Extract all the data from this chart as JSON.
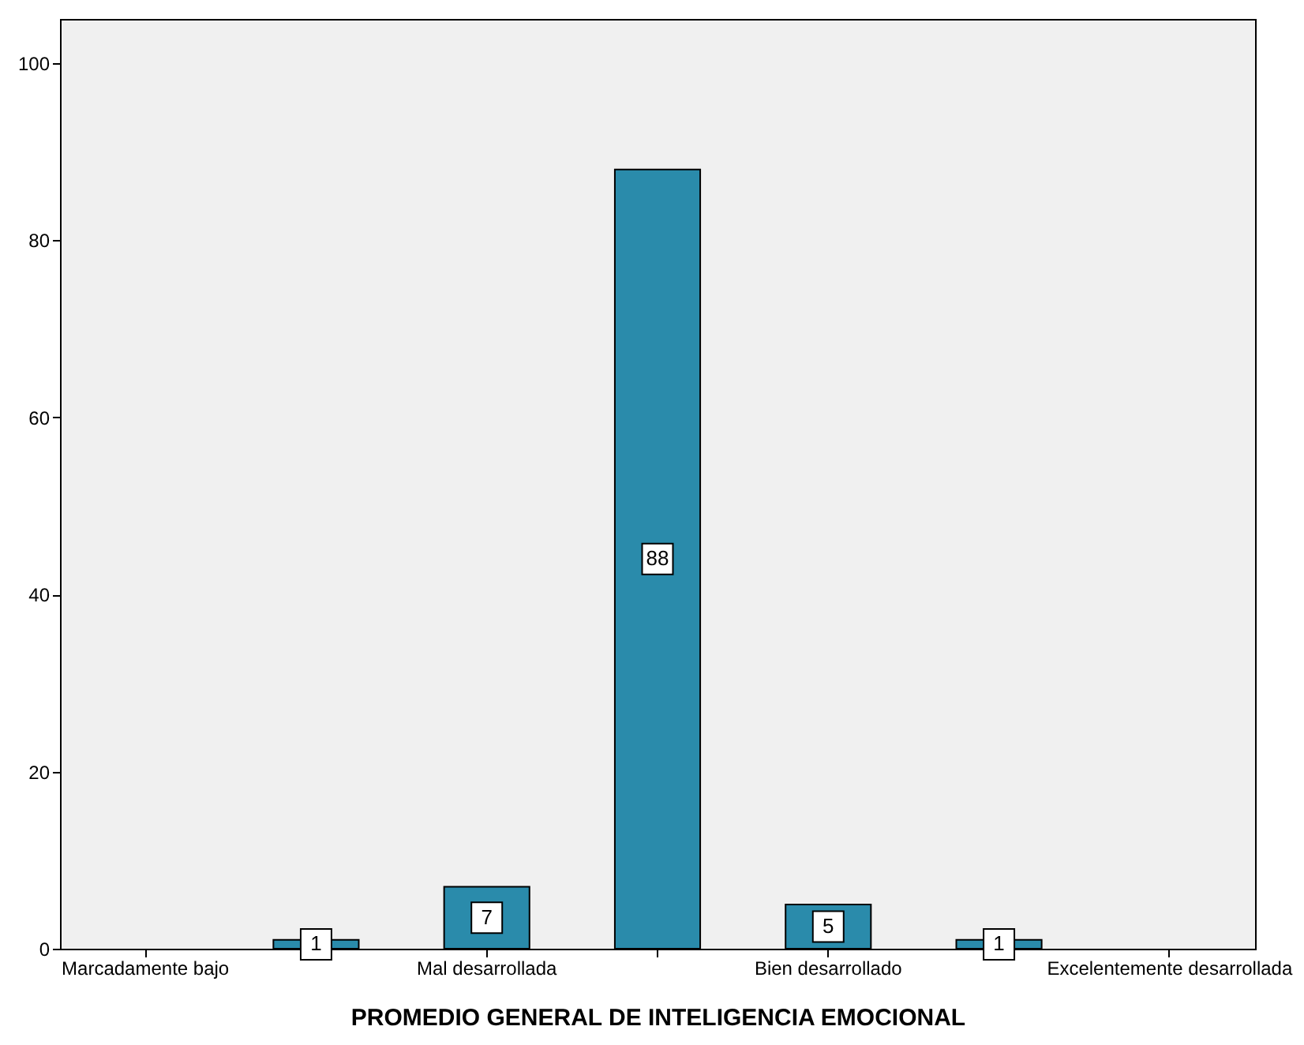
{
  "chart_data": {
    "type": "bar",
    "xlabel": "PROMEDIO GENERAL DE INTELIGENCIA EMOCIONAL",
    "categories": [
      "Marcadamente bajo",
      null,
      "Mal desarrollada",
      null,
      "Bien desarrollado",
      null,
      "Excelentemente desarrollada"
    ],
    "values": [
      null,
      1,
      7,
      88,
      5,
      1,
      null
    ],
    "color": "#2a8bab",
    "ylim": [
      0,
      105
    ],
    "yticks": [
      0,
      20,
      40,
      60,
      80,
      100
    ],
    "grid": false,
    "data_labels": true
  }
}
